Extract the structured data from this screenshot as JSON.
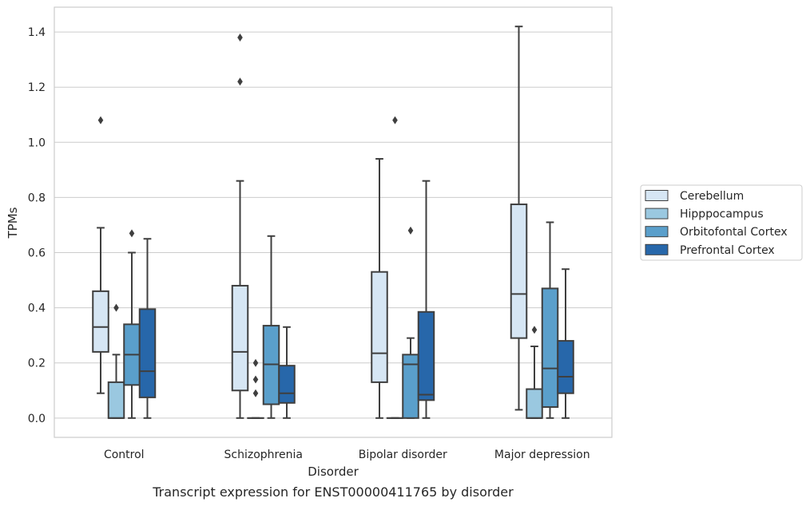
{
  "chart_data": {
    "type": "box",
    "title": "",
    "caption": "Transcript expression for ENST00000411765 by disorder",
    "xlabel": "Disorder",
    "ylabel": "TPMs",
    "ylim": [
      -0.07,
      1.49
    ],
    "yticks": [
      "0.0",
      "0.2",
      "0.4",
      "0.6",
      "0.8",
      "1.0",
      "1.2",
      "1.4"
    ],
    "grid": "horizontal",
    "legend_position": "right",
    "categories": [
      "Control",
      "Schizophrenia",
      "Bipolar disorder",
      "Major depression"
    ],
    "series": [
      {
        "name": "Cerebellum",
        "color": "#d6e6f4",
        "boxes": [
          {
            "whisker_low": 0.09,
            "q1": 0.24,
            "median": 0.33,
            "q3": 0.46,
            "whisker_high": 0.69,
            "outliers": [
              1.08
            ]
          },
          {
            "whisker_low": 0.0,
            "q1": 0.1,
            "median": 0.24,
            "q3": 0.48,
            "whisker_high": 0.86,
            "outliers": [
              1.22,
              1.38
            ]
          },
          {
            "whisker_low": 0.0,
            "q1": 0.13,
            "median": 0.235,
            "q3": 0.53,
            "whisker_high": 0.94,
            "outliers": []
          },
          {
            "whisker_low": 0.03,
            "q1": 0.29,
            "median": 0.45,
            "q3": 0.775,
            "whisker_high": 1.42,
            "outliers": []
          }
        ]
      },
      {
        "name": "Hipppocampus",
        "color": "#9ac8e0",
        "boxes": [
          {
            "whisker_low": 0.0,
            "q1": 0.0,
            "median": 0.0,
            "q3": 0.13,
            "whisker_high": 0.23,
            "outliers": [
              0.4
            ]
          },
          {
            "whisker_low": 0.0,
            "q1": 0.0,
            "median": 0.0,
            "q3": 0.0,
            "whisker_high": 0.0,
            "outliers": [
              0.09,
              0.14,
              0.2
            ]
          },
          {
            "whisker_low": 0.0,
            "q1": 0.0,
            "median": 0.0,
            "q3": 0.0,
            "whisker_high": 0.0,
            "outliers": [
              1.08
            ]
          },
          {
            "whisker_low": 0.0,
            "q1": 0.0,
            "median": 0.0,
            "q3": 0.105,
            "whisker_high": 0.26,
            "outliers": [
              0.32
            ]
          }
        ]
      },
      {
        "name": "Orbitofontal Cortex",
        "color": "#5a9fcb",
        "boxes": [
          {
            "whisker_low": 0.0,
            "q1": 0.12,
            "median": 0.23,
            "q3": 0.34,
            "whisker_high": 0.6,
            "outliers": [
              0.67
            ]
          },
          {
            "whisker_low": 0.0,
            "q1": 0.05,
            "median": 0.195,
            "q3": 0.335,
            "whisker_high": 0.66,
            "outliers": []
          },
          {
            "whisker_low": 0.0,
            "q1": 0.0,
            "median": 0.195,
            "q3": 0.23,
            "whisker_high": 0.29,
            "outliers": [
              0.68
            ]
          },
          {
            "whisker_low": 0.0,
            "q1": 0.04,
            "median": 0.18,
            "q3": 0.47,
            "whisker_high": 0.71,
            "outliers": []
          }
        ]
      },
      {
        "name": "Prefrontal Cortex",
        "color": "#2767aa",
        "boxes": [
          {
            "whisker_low": 0.0,
            "q1": 0.075,
            "median": 0.17,
            "q3": 0.395,
            "whisker_high": 0.65,
            "outliers": []
          },
          {
            "whisker_low": 0.0,
            "q1": 0.055,
            "median": 0.09,
            "q3": 0.19,
            "whisker_high": 0.33,
            "outliers": []
          },
          {
            "whisker_low": 0.0,
            "q1": 0.065,
            "median": 0.085,
            "q3": 0.385,
            "whisker_high": 0.86,
            "outliers": []
          },
          {
            "whisker_low": 0.0,
            "q1": 0.09,
            "median": 0.15,
            "q3": 0.28,
            "whisker_high": 0.54,
            "outliers": []
          }
        ]
      }
    ]
  }
}
